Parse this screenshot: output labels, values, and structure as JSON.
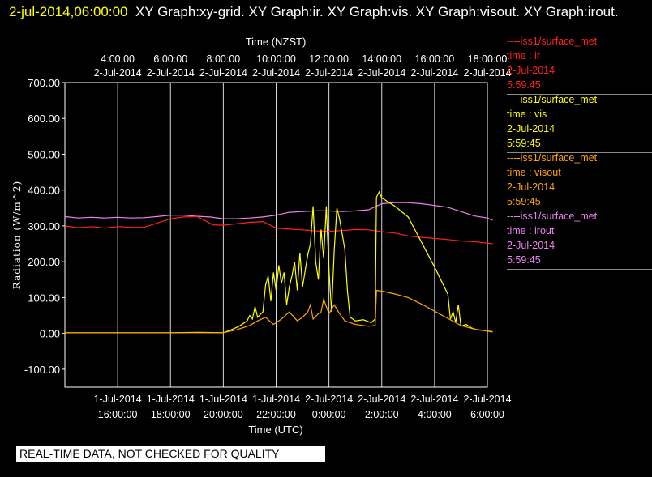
{
  "title": {
    "timestamp": "2-jul-2014,06:00:00",
    "text": "XY Graph:xy-grid.  XY Graph:ir.  XY Graph:vis.  XY Graph:visout.  XY Graph:irout."
  },
  "legend": [
    {
      "source": "----iss1/surface_met",
      "var": "time : ir",
      "date": "2-Jul-2014",
      "time": "5:59:45",
      "color": "#ff2020"
    },
    {
      "source": "----iss1/surface_met",
      "var": "time : vis",
      "date": "2-Jul-2014",
      "time": "5:59:45",
      "color": "#ffff00"
    },
    {
      "source": "----iss1/surface_met",
      "var": "time : visout",
      "date": "2-Jul-2014",
      "time": "5:59:45",
      "color": "#ffa500"
    },
    {
      "source": "----iss1/surface_met",
      "var": "time : irout",
      "date": "2-Jul-2014",
      "time": "5:59:45",
      "color": "#ee82ee"
    }
  ],
  "banner": "REAL-TIME DATA, NOT CHECKED FOR QUALITY",
  "chart_data": {
    "type": "line",
    "xlabel": "Time (UTC)",
    "top_xlabel": "Time (NZST)",
    "ylabel": "Radiation (W/m^2)",
    "xlim": [
      -2,
      14
    ],
    "ylim": [
      -150,
      700
    ],
    "grid": true,
    "bottom_ticks": [
      {
        "x": 0,
        "date": "1-Jul-2014",
        "time": "16:00:00"
      },
      {
        "x": 2,
        "date": "1-Jul-2014",
        "time": "18:00:00"
      },
      {
        "x": 4,
        "date": "1-Jul-2014",
        "time": "20:00:00"
      },
      {
        "x": 6,
        "date": "1-Jul-2014",
        "time": "22:00:00"
      },
      {
        "x": 8,
        "date": "2-Jul-2014",
        "time": "0:00:00"
      },
      {
        "x": 10,
        "date": "2-Jul-2014",
        "time": "2:00:00"
      },
      {
        "x": 12,
        "date": "2-Jul-2014",
        "time": "4:00:00"
      },
      {
        "x": 14,
        "date": "2-Jul-2014",
        "time": "6:00:00"
      }
    ],
    "top_ticks": [
      {
        "x": 0,
        "date": "2-Jul-2014",
        "time": "4:00:00"
      },
      {
        "x": 2,
        "date": "2-Jul-2014",
        "time": "6:00:00"
      },
      {
        "x": 4,
        "date": "2-Jul-2014",
        "time": "8:00:00"
      },
      {
        "x": 6,
        "date": "2-Jul-2014",
        "time": "10:00:00"
      },
      {
        "x": 8,
        "date": "2-Jul-2014",
        "time": "12:00:00"
      },
      {
        "x": 10,
        "date": "2-Jul-2014",
        "time": "14:00:00"
      },
      {
        "x": 12,
        "date": "2-Jul-2014",
        "time": "16:00:00"
      },
      {
        "x": 14,
        "date": "2-Jul-2014",
        "time": "18:00:00"
      }
    ],
    "y_ticks": [
      {
        "v": 700,
        "label": "700.00"
      },
      {
        "v": 600,
        "label": "600.00"
      },
      {
        "v": 500,
        "label": "500.00"
      },
      {
        "v": 400,
        "label": "400.00"
      },
      {
        "v": 300,
        "label": "300.00"
      },
      {
        "v": 200,
        "label": "200.00"
      },
      {
        "v": 100,
        "label": "100.00"
      },
      {
        "v": 0,
        "label": "0.00"
      },
      {
        "v": -100,
        "label": "-100.00"
      }
    ],
    "series": [
      {
        "key": "irout",
        "color": "#ee82ee",
        "points": [
          [
            -2,
            326
          ],
          [
            -1.5,
            322
          ],
          [
            -1,
            324
          ],
          [
            -0.5,
            322
          ],
          [
            0,
            324
          ],
          [
            0.5,
            322
          ],
          [
            1,
            323
          ],
          [
            1.5,
            326
          ],
          [
            2,
            330
          ],
          [
            2.5,
            330
          ],
          [
            3,
            327
          ],
          [
            3.5,
            325
          ],
          [
            4,
            320
          ],
          [
            4.5,
            320
          ],
          [
            5,
            322
          ],
          [
            5.5,
            325
          ],
          [
            6,
            330
          ],
          [
            6.5,
            338
          ],
          [
            7,
            340
          ],
          [
            7.5,
            342
          ],
          [
            8,
            342
          ],
          [
            8.5,
            340
          ],
          [
            9,
            342
          ],
          [
            9.5,
            345
          ],
          [
            10,
            362
          ],
          [
            10.5,
            365
          ],
          [
            11,
            365
          ],
          [
            11.5,
            362
          ],
          [
            12,
            357
          ],
          [
            12.5,
            352
          ],
          [
            13,
            340
          ],
          [
            13.5,
            328
          ],
          [
            14,
            322
          ],
          [
            14.2,
            316
          ]
        ]
      },
      {
        "key": "ir",
        "color": "#ff2020",
        "points": [
          [
            -2,
            300
          ],
          [
            -1.5,
            295
          ],
          [
            -1,
            298
          ],
          [
            -0.5,
            294
          ],
          [
            0,
            298
          ],
          [
            0.5,
            296
          ],
          [
            1,
            296
          ],
          [
            1.5,
            308
          ],
          [
            2,
            320
          ],
          [
            2.5,
            325
          ],
          [
            3,
            326
          ],
          [
            3.3,
            315
          ],
          [
            3.6,
            303
          ],
          [
            4,
            302
          ],
          [
            4.5,
            306
          ],
          [
            5,
            310
          ],
          [
            5.5,
            312
          ],
          [
            6,
            294
          ],
          [
            6.5,
            291
          ],
          [
            7,
            289
          ],
          [
            7.5,
            286
          ],
          [
            8,
            285
          ],
          [
            8.5,
            287
          ],
          [
            9,
            290
          ],
          [
            9.5,
            289
          ],
          [
            10,
            284
          ],
          [
            10.5,
            280
          ],
          [
            11,
            272
          ],
          [
            11.5,
            268
          ],
          [
            12,
            265
          ],
          [
            12.5,
            262
          ],
          [
            13,
            258
          ],
          [
            13.5,
            256
          ],
          [
            14,
            252
          ],
          [
            14.2,
            250
          ]
        ]
      },
      {
        "key": "vis",
        "color": "#ffff00",
        "points": [
          [
            -2,
            2
          ],
          [
            -1,
            2
          ],
          [
            0,
            2
          ],
          [
            1,
            2
          ],
          [
            2,
            2
          ],
          [
            3,
            3
          ],
          [
            4,
            2
          ],
          [
            4.3,
            10
          ],
          [
            4.6,
            20
          ],
          [
            4.9,
            35
          ],
          [
            5,
            50
          ],
          [
            5.1,
            40
          ],
          [
            5.2,
            75
          ],
          [
            5.3,
            45
          ],
          [
            5.5,
            60
          ],
          [
            5.6,
            135
          ],
          [
            5.7,
            160
          ],
          [
            5.8,
            90
          ],
          [
            5.9,
            170
          ],
          [
            6.0,
            120
          ],
          [
            6.1,
            190
          ],
          [
            6.2,
            140
          ],
          [
            6.3,
            170
          ],
          [
            6.4,
            80
          ],
          [
            6.5,
            130
          ],
          [
            6.6,
            160
          ],
          [
            6.7,
            200
          ],
          [
            6.8,
            120
          ],
          [
            6.9,
            225
          ],
          [
            7.0,
            130
          ],
          [
            7.1,
            175
          ],
          [
            7.2,
            220
          ],
          [
            7.3,
            250
          ],
          [
            7.4,
            355
          ],
          [
            7.5,
            200
          ],
          [
            7.6,
            150
          ],
          [
            7.7,
            290
          ],
          [
            7.8,
            210
          ],
          [
            7.9,
            355
          ],
          [
            8.0,
            180
          ],
          [
            8.1,
            60
          ],
          [
            8.2,
            230
          ],
          [
            8.3,
            350
          ],
          [
            8.4,
            320
          ],
          [
            8.6,
            235
          ],
          [
            8.7,
            120
          ],
          [
            8.8,
            45
          ],
          [
            9.0,
            35
          ],
          [
            9.3,
            38
          ],
          [
            9.6,
            30
          ],
          [
            9.75,
            40
          ],
          [
            9.8,
            380
          ],
          [
            9.9,
            395
          ],
          [
            10.0,
            378
          ],
          [
            10.5,
            355
          ],
          [
            11.0,
            325
          ],
          [
            11.5,
            255
          ],
          [
            12.0,
            185
          ],
          [
            12.3,
            140
          ],
          [
            12.5,
            110
          ],
          [
            12.6,
            40
          ],
          [
            12.7,
            60
          ],
          [
            12.8,
            30
          ],
          [
            12.9,
            80
          ],
          [
            13.0,
            20
          ],
          [
            13.2,
            25
          ],
          [
            13.4,
            15
          ],
          [
            13.6,
            10
          ],
          [
            13.9,
            8
          ],
          [
            14.2,
            4
          ]
        ]
      },
      {
        "key": "visout",
        "color": "#ffa500",
        "points": [
          [
            -2,
            2
          ],
          [
            -1,
            2
          ],
          [
            0,
            2
          ],
          [
            1,
            2
          ],
          [
            2,
            2
          ],
          [
            3,
            2
          ],
          [
            4,
            2
          ],
          [
            4.5,
            10
          ],
          [
            5,
            22
          ],
          [
            5.3,
            35
          ],
          [
            5.6,
            45
          ],
          [
            5.9,
            25
          ],
          [
            6.2,
            40
          ],
          [
            6.5,
            60
          ],
          [
            6.8,
            35
          ],
          [
            7.0,
            45
          ],
          [
            7.2,
            60
          ],
          [
            7.3,
            80
          ],
          [
            7.4,
            40
          ],
          [
            7.6,
            55
          ],
          [
            7.7,
            60
          ],
          [
            7.8,
            95
          ],
          [
            8.0,
            55
          ],
          [
            8.2,
            80
          ],
          [
            8.4,
            55
          ],
          [
            8.6,
            35
          ],
          [
            9.0,
            25
          ],
          [
            9.5,
            20
          ],
          [
            9.75,
            22
          ],
          [
            9.8,
            120
          ],
          [
            10.0,
            118
          ],
          [
            10.5,
            110
          ],
          [
            11.0,
            100
          ],
          [
            11.5,
            82
          ],
          [
            12.0,
            62
          ],
          [
            12.5,
            42
          ],
          [
            12.8,
            30
          ],
          [
            13.0,
            22
          ],
          [
            13.5,
            12
          ],
          [
            14.0,
            7
          ],
          [
            14.2,
            5
          ]
        ]
      }
    ]
  }
}
